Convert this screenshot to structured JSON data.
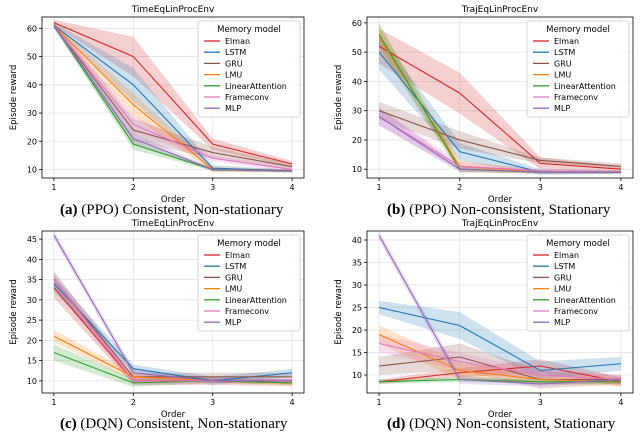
{
  "legend_title": "Memory model",
  "series_colors": {
    "Elman": "#d62728",
    "LSTM": "#1f77b4",
    "GRU": "#8c564b",
    "LMU": "#ff7f0e",
    "LinearAttention": "#2ca02c",
    "Frameconv": "#e377c2",
    "MLP": "#9467bd"
  },
  "captions": [
    {
      "tag": "(a)",
      "text": " (PPO) Consistent, Non-stationary"
    },
    {
      "tag": "(b)",
      "text": " (PPO) Non-consistent, Stationary"
    },
    {
      "tag": "(c)",
      "text": " (DQN) Consistent, Non-stationary"
    },
    {
      "tag": "(d)",
      "text": " (DQN) Non-consistent, Stationary"
    }
  ],
  "chart_data": [
    {
      "type": "line",
      "title": "TimeEqLinProcEnv",
      "xlabel": "Order",
      "ylabel": "Episode reward",
      "x": [
        1,
        2,
        3,
        4
      ],
      "xlim": [
        0.85,
        4.15
      ],
      "ylim": [
        7,
        64
      ],
      "yticks": [
        10,
        20,
        30,
        40,
        50,
        60
      ],
      "legend": "top-right",
      "grid": true,
      "series": [
        {
          "name": "Elman",
          "values": [
            62,
            50,
            19,
            12
          ],
          "band": [
            1,
            7,
            2,
            1
          ]
        },
        {
          "name": "LSTM",
          "values": [
            61,
            40,
            10.5,
            9.5
          ],
          "band": [
            1,
            6,
            1,
            0.5
          ]
        },
        {
          "name": "GRU",
          "values": [
            61,
            24,
            16,
            11
          ],
          "band": [
            1,
            4,
            2,
            1
          ]
        },
        {
          "name": "LMU",
          "values": [
            61,
            33,
            10,
            9.5
          ],
          "band": [
            1,
            4,
            1,
            0.5
          ]
        },
        {
          "name": "LinearAttention",
          "values": [
            61,
            19,
            10,
            9.5
          ],
          "band": [
            1,
            2,
            0.5,
            0.5
          ]
        },
        {
          "name": "Frameconv",
          "values": [
            61,
            26,
            14,
            10
          ],
          "band": [
            1,
            3,
            1,
            1
          ]
        },
        {
          "name": "MLP",
          "values": [
            61,
            21,
            10,
            9.5
          ],
          "band": [
            1,
            2,
            0.5,
            0.5
          ]
        }
      ]
    },
    {
      "type": "line",
      "title": "TrajEqLinProcEnv",
      "xlabel": "Order",
      "ylabel": "Episode reward",
      "x": [
        1,
        2,
        3,
        4
      ],
      "xlim": [
        0.85,
        4.15
      ],
      "ylim": [
        7,
        62
      ],
      "yticks": [
        10,
        20,
        30,
        40,
        50,
        60
      ],
      "legend": "top-right",
      "grid": true,
      "series": [
        {
          "name": "Elman",
          "values": [
            52,
            36,
            12,
            10
          ],
          "band": [
            6,
            7,
            2,
            1
          ]
        },
        {
          "name": "LSTM",
          "values": [
            50,
            16,
            9,
            9
          ],
          "band": [
            6,
            3,
            1,
            0.5
          ]
        },
        {
          "name": "GRU",
          "values": [
            30,
            20,
            13,
            11
          ],
          "band": [
            3,
            3,
            1,
            1
          ]
        },
        {
          "name": "LMU",
          "values": [
            55,
            11,
            9,
            9
          ],
          "band": [
            4,
            2,
            0.5,
            0.5
          ]
        },
        {
          "name": "LinearAttention",
          "values": [
            56,
            10,
            9,
            9
          ],
          "band": [
            4,
            1,
            0.5,
            0.5
          ]
        },
        {
          "name": "Frameconv",
          "values": [
            28,
            11,
            9.5,
            9
          ],
          "band": [
            3,
            1.5,
            0.5,
            0.5
          ]
        },
        {
          "name": "MLP",
          "values": [
            28,
            10,
            9,
            9
          ],
          "band": [
            3,
            1,
            0.5,
            0.5
          ]
        }
      ]
    },
    {
      "type": "line",
      "title": "TimeEqLinProcEnv",
      "xlabel": "Order",
      "ylabel": "Episode reward",
      "x": [
        1,
        2,
        3,
        4
      ],
      "xlim": [
        0.85,
        4.15
      ],
      "ylim": [
        7,
        47
      ],
      "yticks": [
        10,
        15,
        20,
        25,
        30,
        35,
        40,
        45
      ],
      "legend": "top-right",
      "grid": true,
      "series": [
        {
          "name": "Elman",
          "values": [
            33,
            10,
            10,
            9.5
          ],
          "band": [
            2.5,
            1,
            1,
            0.8
          ]
        },
        {
          "name": "LSTM",
          "values": [
            34,
            13,
            10,
            12
          ],
          "band": [
            2,
            1,
            1,
            1
          ]
        },
        {
          "name": "GRU",
          "values": [
            35,
            11,
            11,
            11
          ],
          "band": [
            2,
            1,
            1,
            1
          ]
        },
        {
          "name": "LMU",
          "values": [
            21,
            11,
            10,
            9.5
          ],
          "band": [
            1.5,
            1,
            0.5,
            0.5
          ]
        },
        {
          "name": "LinearAttention",
          "values": [
            17,
            9.5,
            10,
            9.5
          ],
          "band": [
            2,
            1,
            0.5,
            0.5
          ]
        },
        {
          "name": "Frameconv",
          "values": [
            35,
            10,
            10,
            10
          ],
          "band": [
            2,
            1,
            0.5,
            0.5
          ]
        },
        {
          "name": "MLP",
          "values": [
            46,
            12,
            10,
            10
          ],
          "band": [
            1,
            1,
            0.5,
            0.5
          ]
        }
      ]
    },
    {
      "type": "line",
      "title": "TrajEqLinProcEnv",
      "xlabel": "Order",
      "ylabel": "Episode reward",
      "x": [
        1,
        2,
        3,
        4
      ],
      "xlim": [
        0.85,
        4.15
      ],
      "ylim": [
        6,
        42
      ],
      "yticks": [
        10,
        15,
        20,
        25,
        30,
        35,
        40
      ],
      "legend": "top-right",
      "grid": true,
      "series": [
        {
          "name": "Elman",
          "values": [
            8.5,
            10.5,
            12,
            8.5
          ],
          "band": [
            0.5,
            1,
            1.5,
            1
          ]
        },
        {
          "name": "LSTM",
          "values": [
            25,
            21,
            11,
            12.5
          ],
          "band": [
            1.5,
            3,
            2,
            1.5
          ]
        },
        {
          "name": "GRU",
          "values": [
            12,
            14,
            9,
            9
          ],
          "band": [
            2,
            3,
            2,
            1
          ]
        },
        {
          "name": "LMU",
          "values": [
            19,
            11,
            9,
            8.5
          ],
          "band": [
            2,
            2,
            1,
            1
          ]
        },
        {
          "name": "LinearAttention",
          "values": [
            8.5,
            9,
            8.5,
            8.5
          ],
          "band": [
            0.5,
            0.5,
            0.5,
            0.5
          ]
        },
        {
          "name": "Frameconv",
          "values": [
            17,
            13,
            10,
            9
          ],
          "band": [
            2,
            2,
            1,
            1
          ]
        },
        {
          "name": "MLP",
          "values": [
            41,
            9,
            8,
            9
          ],
          "band": [
            1,
            1,
            0.5,
            0.5
          ]
        }
      ]
    }
  ]
}
